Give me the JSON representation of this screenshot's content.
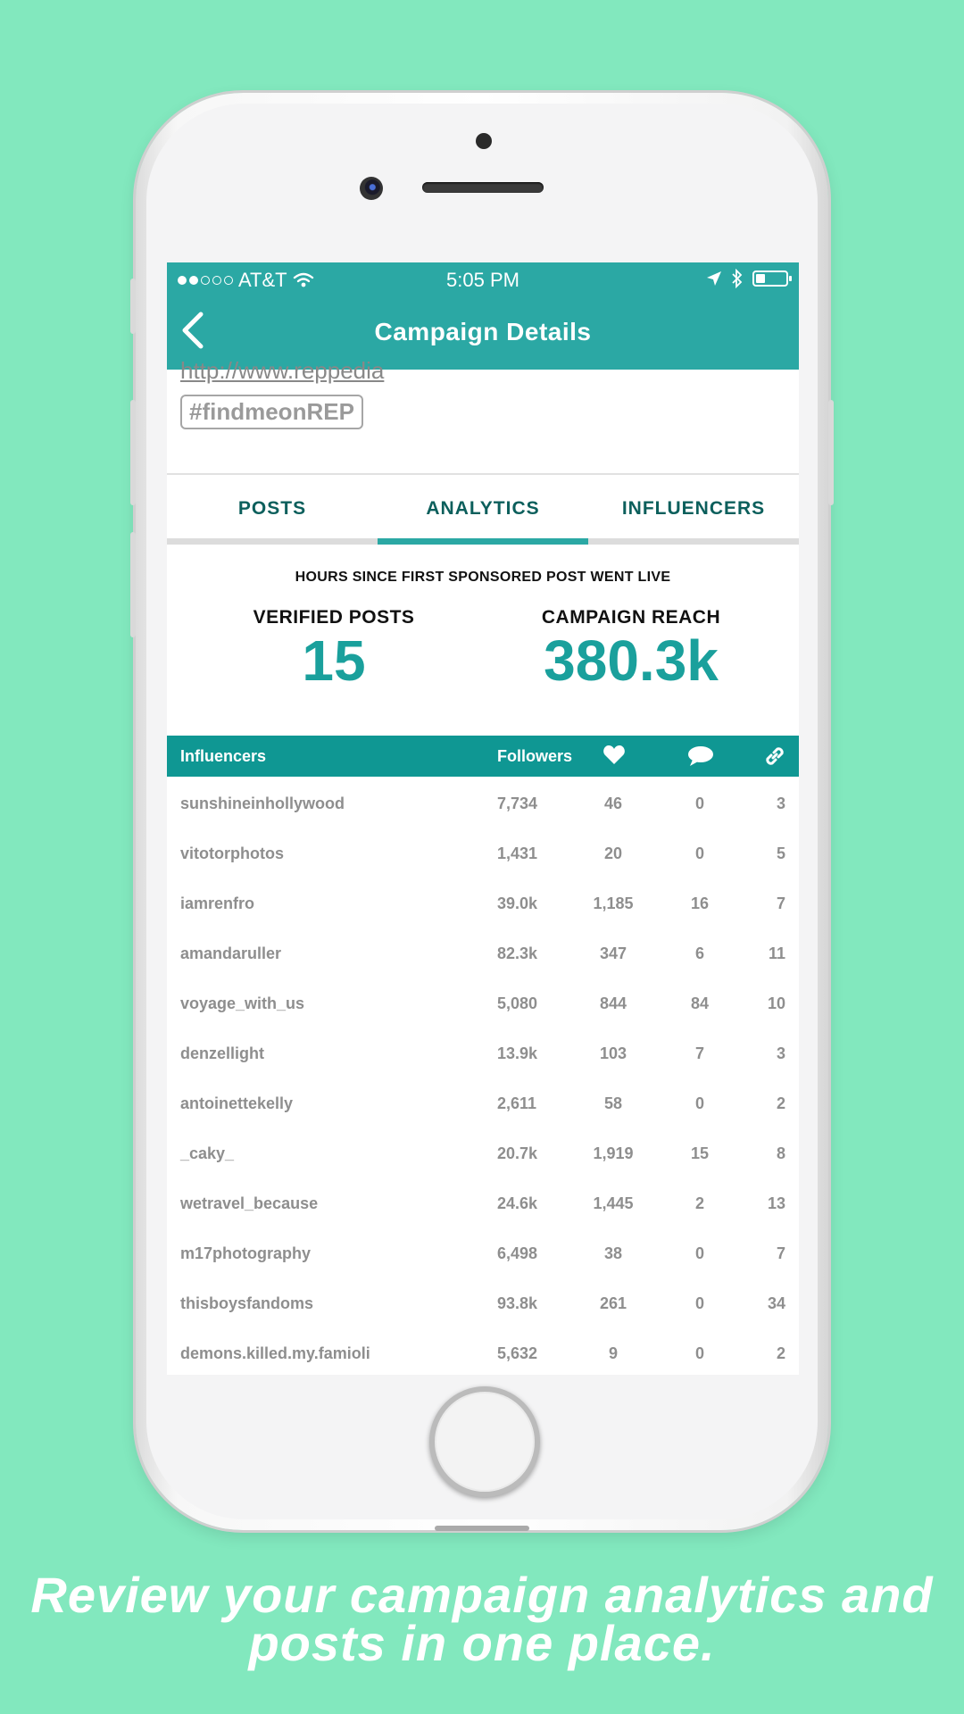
{
  "status_bar": {
    "carrier": "AT&T",
    "time": "5:05 PM",
    "battery_level": 0.3
  },
  "nav": {
    "title": "Campaign Details"
  },
  "header": {
    "link_text": "http://www.reppedia",
    "hashtag": "#findmeonREP"
  },
  "tabs": [
    {
      "label": "POSTS",
      "active": false
    },
    {
      "label": "ANALYTICS",
      "active": true
    },
    {
      "label": "INFLUENCERS",
      "active": false
    }
  ],
  "stats": {
    "hours_label": "HOURS SINCE FIRST SPONSORED POST WENT LIVE",
    "verified_posts_label": "VERIFIED POSTS",
    "verified_posts_value": "15",
    "campaign_reach_label": "CAMPAIGN REACH",
    "campaign_reach_value": "380.3k"
  },
  "table": {
    "headers": {
      "influencers": "Influencers",
      "followers": "Followers",
      "likes_icon": "heart-icon",
      "comments_icon": "comment-icon",
      "links_icon": "link-icon"
    },
    "rows": [
      {
        "name": "sunshineinhollywood",
        "followers": "7,734",
        "likes": "46",
        "comments": "0",
        "links": "3"
      },
      {
        "name": "vitotorphotos",
        "followers": "1,431",
        "likes": "20",
        "comments": "0",
        "links": "5"
      },
      {
        "name": "iamrenfro",
        "followers": "39.0k",
        "likes": "1,185",
        "comments": "16",
        "links": "7"
      },
      {
        "name": "amandaruller",
        "followers": "82.3k",
        "likes": "347",
        "comments": "6",
        "links": "11"
      },
      {
        "name": "voyage_with_us",
        "followers": "5,080",
        "likes": "844",
        "comments": "84",
        "links": "10"
      },
      {
        "name": "denzellight",
        "followers": "13.9k",
        "likes": "103",
        "comments": "7",
        "links": "3"
      },
      {
        "name": "antoinettekelly",
        "followers": "2,611",
        "likes": "58",
        "comments": "0",
        "links": "2"
      },
      {
        "name": "_caky_",
        "followers": "20.7k",
        "likes": "1,919",
        "comments": "15",
        "links": "8"
      },
      {
        "name": "wetravel_because",
        "followers": "24.6k",
        "likes": "1,445",
        "comments": "2",
        "links": "13"
      },
      {
        "name": "m17photography",
        "followers": "6,498",
        "likes": "38",
        "comments": "0",
        "links": "7"
      },
      {
        "name": "thisboysfandoms",
        "followers": "93.8k",
        "likes": "261",
        "comments": "0",
        "links": "34"
      },
      {
        "name": "demons.killed.my.famioli",
        "followers": "5,632",
        "likes": "9",
        "comments": "0",
        "links": "2"
      }
    ]
  },
  "caption": {
    "line1": "Review your campaign analytics and",
    "line2": "posts in one place."
  },
  "colors": {
    "background": "#82e8be",
    "accent": "#2ba8a4",
    "table_header": "#0f9793"
  }
}
